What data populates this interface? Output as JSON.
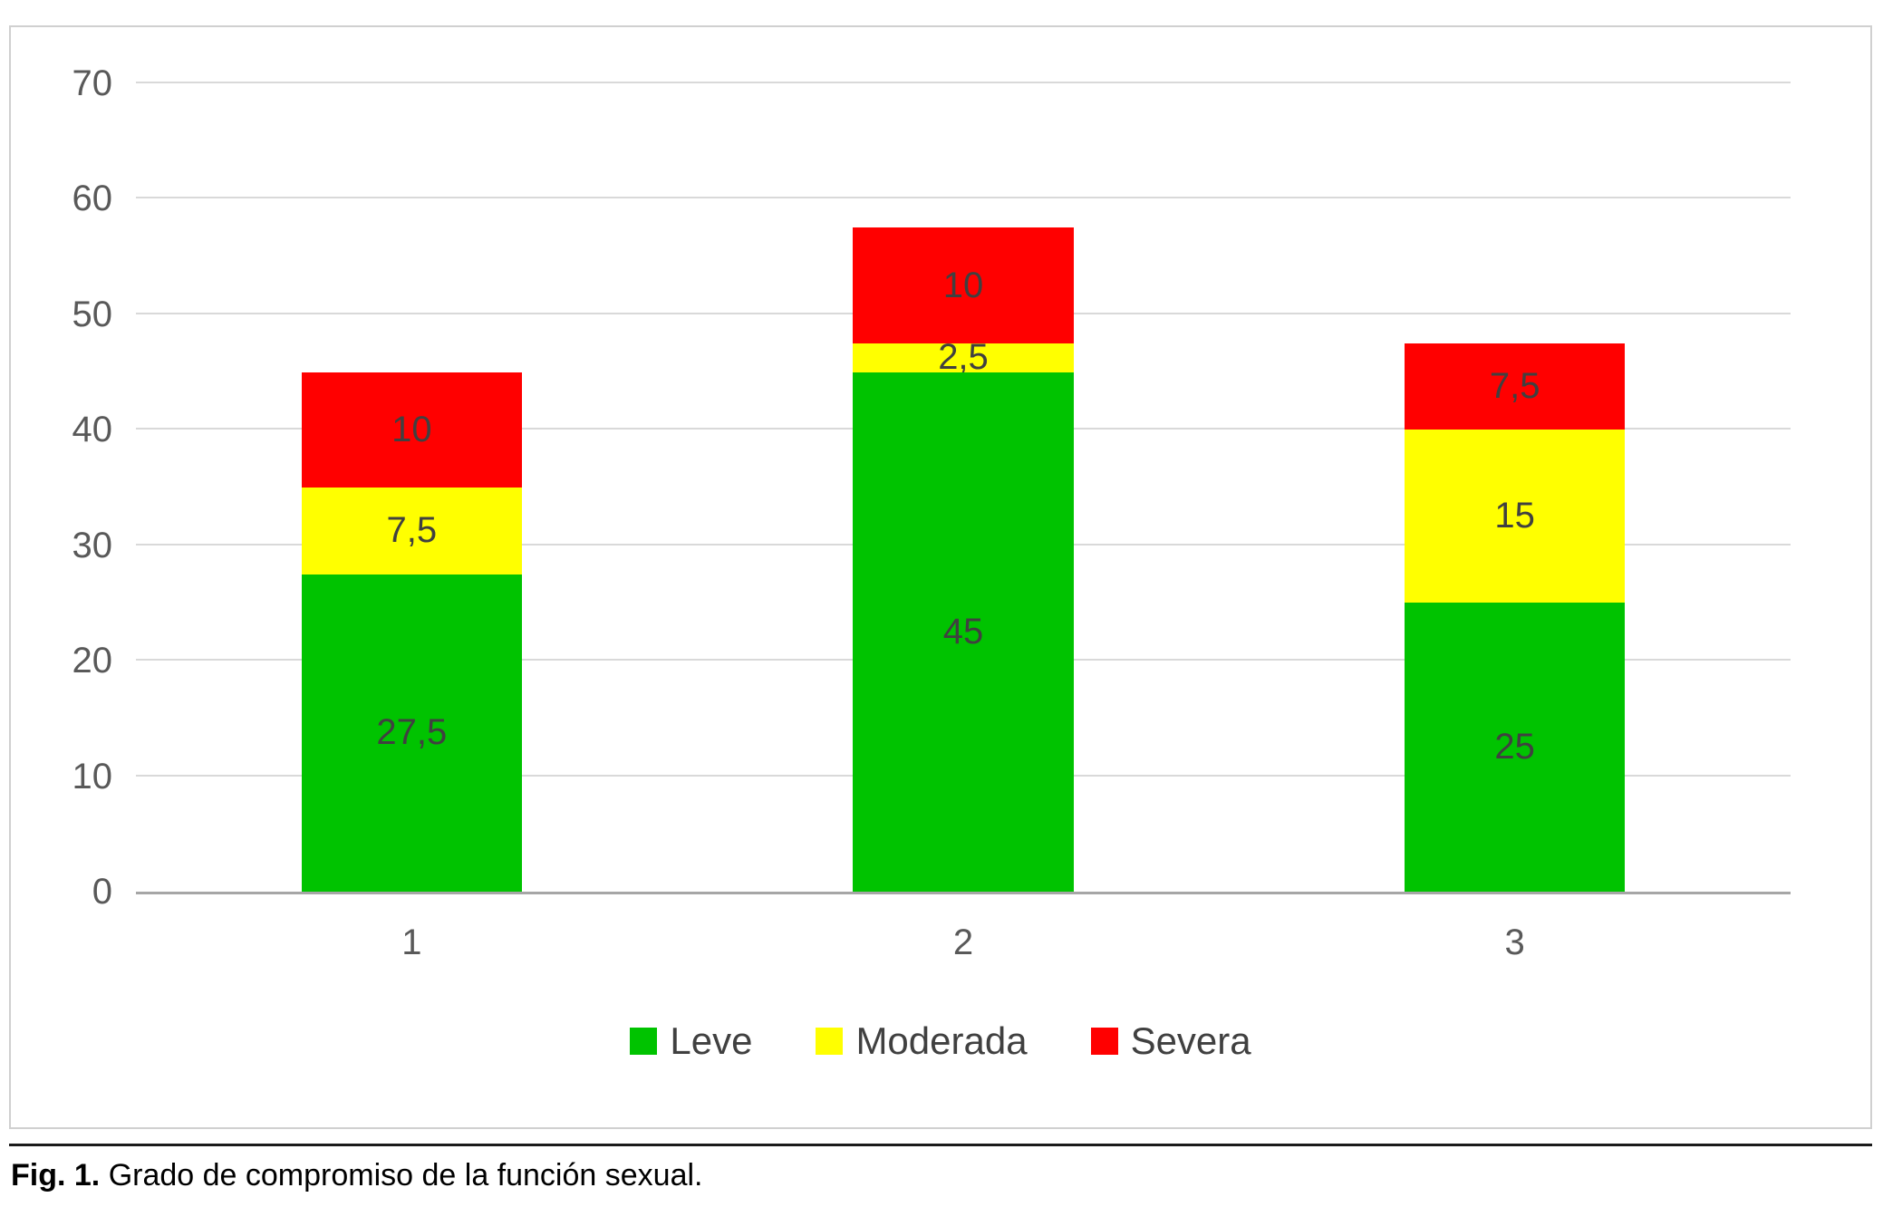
{
  "chart_data": {
    "type": "bar",
    "stacked": true,
    "title": "",
    "xlabel": "",
    "ylabel": "",
    "categories": [
      "1",
      "2",
      "3"
    ],
    "series": [
      {
        "name": "Leve",
        "color": "#00c300",
        "values": [
          27.5,
          45,
          25
        ],
        "labels": [
          "27,5",
          "45",
          "25"
        ]
      },
      {
        "name": "Moderada",
        "color": "#ffff00",
        "values": [
          7.5,
          2.5,
          15
        ],
        "labels": [
          "7,5",
          "2,5",
          "15"
        ]
      },
      {
        "name": "Severa",
        "color": "#ff0000",
        "values": [
          10,
          10,
          7.5
        ],
        "labels": [
          "10",
          "10",
          "7,5"
        ]
      }
    ],
    "ylim": [
      0,
      70
    ],
    "yticks": [
      0,
      10,
      20,
      30,
      40,
      50,
      60,
      70
    ],
    "grid": true,
    "legend_position": "bottom",
    "colors": {
      "gridline": "#d9d9d9",
      "axis_line": "#a6a6a6",
      "tick_label": "#595959",
      "data_label": "#404040"
    }
  },
  "caption": {
    "label": "Fig. 1.",
    "text": "Grado de compromiso de la función sexual."
  }
}
